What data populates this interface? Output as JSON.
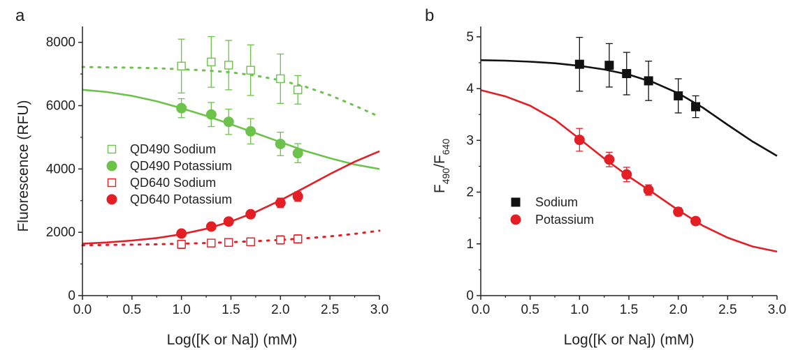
{
  "chart_data": [
    {
      "panel_label": "a",
      "type": "scatter",
      "xlabel": "Log([K or Na]) (mM)",
      "ylabel": "Fluorescence (RFU)",
      "xlim": [
        0,
        3
      ],
      "ylim": [
        0,
        8500
      ],
      "xticks": [
        0.0,
        0.5,
        1.0,
        1.5,
        2.0,
        2.5,
        3.0
      ],
      "xtick_labels": [
        "0.0",
        "0.5",
        "1.0",
        "1.5",
        "2.0",
        "2.5",
        "3.0"
      ],
      "yticks": [
        0,
        2000,
        4000,
        6000,
        8000
      ],
      "ytick_labels": [
        "0",
        "2000",
        "4000",
        "6000",
        "8000"
      ],
      "legend_position": "center-left",
      "series": [
        {
          "name": "QD490 Sodium",
          "marker": "open-square",
          "color": "#6cc24a",
          "x": [
            1.0,
            1.301,
            1.477,
            1.699,
            2.0,
            2.176
          ],
          "y": [
            7250,
            7380,
            7280,
            7120,
            6850,
            6500
          ],
          "err": [
            850,
            800,
            780,
            800,
            780,
            450
          ],
          "fit": {
            "style": "dotted",
            "x": [
              0,
              0.25,
              0.5,
              0.75,
              1.0,
              1.25,
              1.5,
              1.75,
              2.0,
              2.25,
              2.5,
              2.75,
              3.0
            ],
            "y": [
              7220,
              7210,
              7200,
              7180,
              7150,
              7110,
              7050,
              6950,
              6800,
              6600,
              6330,
              6000,
              5650
            ]
          }
        },
        {
          "name": "QD490 Potassium",
          "marker": "filled-circle",
          "color": "#6cc24a",
          "x": [
            1.0,
            1.301,
            1.477,
            1.699,
            2.0,
            2.176
          ],
          "y": [
            5920,
            5720,
            5490,
            5190,
            4790,
            4500
          ],
          "err": [
            300,
            380,
            400,
            400,
            370,
            300
          ],
          "fit": {
            "style": "solid",
            "x": [
              0,
              0.25,
              0.5,
              0.75,
              1.0,
              1.25,
              1.5,
              1.75,
              2.0,
              2.25,
              2.5,
              2.75,
              3.0
            ],
            "y": [
              6500,
              6430,
              6310,
              6140,
              5920,
              5680,
              5410,
              5130,
              4850,
              4570,
              4340,
              4140,
              4000
            ]
          }
        },
        {
          "name": "QD640 Sodium",
          "marker": "open-square",
          "color": "#e31e24",
          "x": [
            1.0,
            1.301,
            1.477,
            1.699,
            2.0,
            2.176
          ],
          "y": [
            1620,
            1660,
            1680,
            1700,
            1760,
            1790
          ],
          "err": [
            130,
            120,
            120,
            120,
            130,
            130
          ],
          "fit": {
            "style": "dotted",
            "x": [
              0,
              0.25,
              0.5,
              0.75,
              1.0,
              1.25,
              1.5,
              1.75,
              2.0,
              2.25,
              2.5,
              2.75,
              3.0
            ],
            "y": [
              1590,
              1600,
              1610,
              1620,
              1640,
              1660,
              1690,
              1720,
              1760,
              1810,
              1870,
              1950,
              2050
            ]
          }
        },
        {
          "name": "QD640 Potassium",
          "marker": "filled-circle",
          "color": "#e31e24",
          "x": [
            1.0,
            1.301,
            1.477,
            1.699,
            2.0,
            2.176
          ],
          "y": [
            1960,
            2180,
            2340,
            2570,
            2930,
            3130
          ],
          "err": [
            70,
            80,
            80,
            100,
            150,
            150
          ],
          "fit": {
            "style": "solid",
            "x": [
              0,
              0.25,
              0.5,
              0.75,
              1.0,
              1.25,
              1.5,
              1.75,
              2.0,
              2.25,
              2.5,
              2.75,
              3.0
            ],
            "y": [
              1640,
              1680,
              1740,
              1820,
              1940,
              2110,
              2340,
              2640,
              3010,
              3420,
              3840,
              4230,
              4560
            ]
          }
        }
      ]
    },
    {
      "panel_label": "b",
      "type": "scatter",
      "xlabel": "Log([K or Na]) (mM)",
      "ylabel_main": "F",
      "ylabel_sub1": "490",
      "ylabel_sep": "/F",
      "ylabel_sub2": "640",
      "xlim": [
        0,
        3
      ],
      "ylim": [
        0,
        5.2
      ],
      "xticks": [
        0.0,
        0.5,
        1.0,
        1.5,
        2.0,
        2.5,
        3.0
      ],
      "xtick_labels": [
        "0.0",
        "0.5",
        "1.0",
        "1.5",
        "2.0",
        "2.5",
        "3.0"
      ],
      "yticks": [
        0,
        1,
        2,
        3,
        4,
        5
      ],
      "ytick_labels": [
        "0",
        "1",
        "2",
        "3",
        "4",
        "5"
      ],
      "legend_position": "center-left",
      "series": [
        {
          "name": "Sodium",
          "marker": "filled-square",
          "color": "#111111",
          "x": [
            1.0,
            1.301,
            1.477,
            1.699,
            2.0,
            2.176
          ],
          "y": [
            4.47,
            4.45,
            4.29,
            4.15,
            3.86,
            3.65
          ],
          "err": [
            0.52,
            0.42,
            0.41,
            0.38,
            0.33,
            0.21
          ],
          "fit": {
            "style": "solid",
            "x": [
              0,
              0.25,
              0.5,
              0.75,
              1.0,
              1.25,
              1.5,
              1.75,
              2.0,
              2.25,
              2.5,
              2.75,
              3.0
            ],
            "y": [
              4.55,
              4.54,
              4.52,
              4.49,
              4.44,
              4.37,
              4.27,
              4.12,
              3.91,
              3.63,
              3.3,
              2.98,
              2.7
            ]
          }
        },
        {
          "name": "Potassium",
          "marker": "filled-circle",
          "color": "#e31e24",
          "x": [
            1.0,
            1.301,
            1.477,
            1.699,
            2.0,
            2.176
          ],
          "y": [
            3.01,
            2.63,
            2.34,
            2.04,
            1.62,
            1.44
          ],
          "err": [
            0.22,
            0.14,
            0.14,
            0.1,
            0.08,
            0.07
          ],
          "fit": {
            "style": "solid",
            "x": [
              0,
              0.25,
              0.5,
              0.75,
              1.0,
              1.25,
              1.5,
              1.75,
              2.0,
              2.25,
              2.5,
              2.75,
              3.0
            ],
            "y": [
              3.97,
              3.85,
              3.67,
              3.4,
              3.03,
              2.65,
              2.3,
              1.98,
              1.65,
              1.35,
              1.12,
              0.95,
              0.85
            ]
          }
        }
      ]
    }
  ]
}
